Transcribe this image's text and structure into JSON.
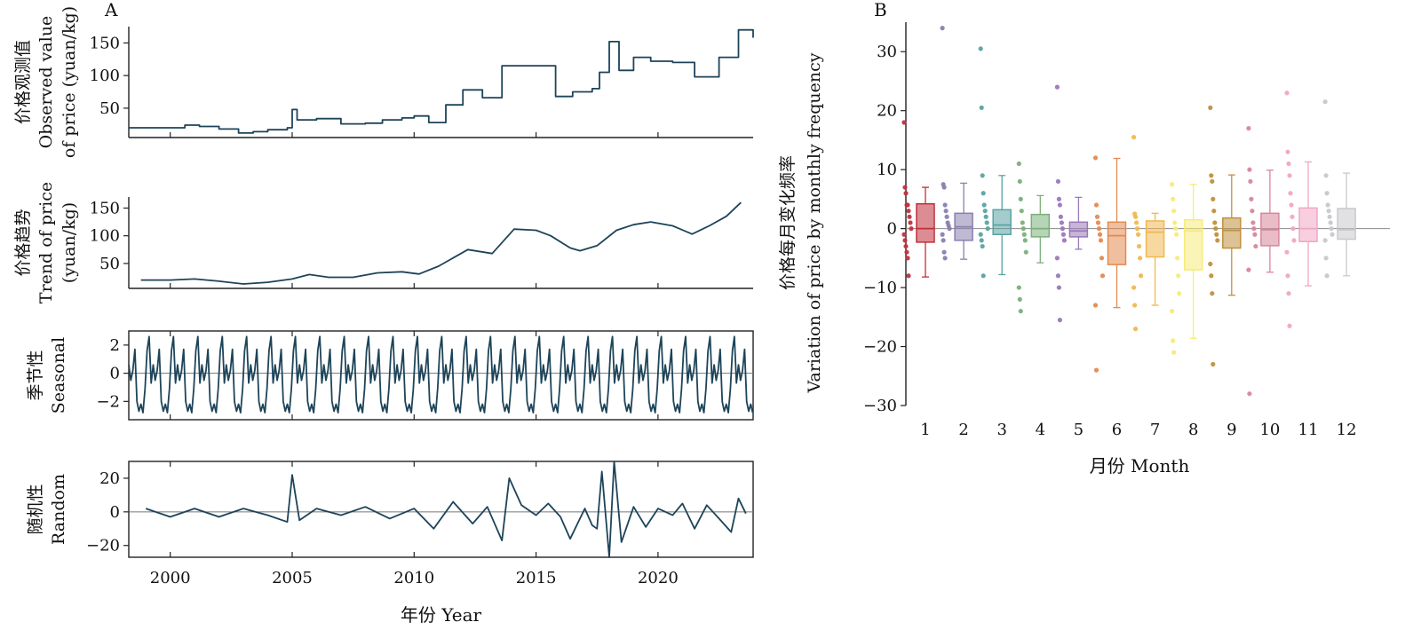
{
  "panel_a_label": "A",
  "panel_b_label": "B",
  "chart_data": [
    {
      "type": "line",
      "id": "observed",
      "ylabel": [
        "价格观测值",
        "Observed value",
        "of price (yuan/kg)"
      ],
      "yticks": [
        50,
        100,
        150
      ],
      "ylim": [
        5,
        175
      ],
      "x": [
        1998.3,
        1999,
        2000,
        2000.6,
        2001.2,
        2002,
        2002.8,
        2003.4,
        2004,
        2004.8,
        2005,
        2005.2,
        2006,
        2007,
        2008,
        2008.7,
        2009.5,
        2010,
        2010.6,
        2011.3,
        2012,
        2012.8,
        2013.6,
        2014.5,
        2015,
        2015.8,
        2016.5,
        2017.3,
        2017.6,
        2018,
        2018.4,
        2019,
        2019.7,
        2020.6,
        2021.5,
        2022.5,
        2023.3,
        2023.9
      ],
      "y": [
        20,
        20,
        20,
        24,
        22,
        18,
        12,
        14,
        17,
        20,
        48,
        32,
        34,
        26,
        27,
        32,
        35,
        38,
        28,
        55,
        78,
        66,
        115,
        115,
        115,
        68,
        75,
        80,
        105,
        152,
        108,
        128,
        122,
        120,
        98,
        128,
        170,
        158
      ],
      "xlim": [
        1998.3,
        2023.9
      ]
    },
    {
      "type": "line",
      "id": "trend",
      "ylabel": [
        "价格趋势",
        "Trend of price",
        "(yuan/kg)"
      ],
      "yticks": [
        50,
        100,
        150
      ],
      "ylim": [
        5,
        170
      ],
      "x": [
        1998.8,
        2000,
        2001,
        2002,
        2003,
        2004,
        2005,
        2005.7,
        2006.5,
        2007.5,
        2008.5,
        2009.5,
        2010.2,
        2011,
        2012.2,
        2013.2,
        2014.1,
        2015,
        2015.6,
        2016.4,
        2016.8,
        2017.5,
        2018.3,
        2019,
        2019.7,
        2020.6,
        2021.4,
        2022.1,
        2022.8,
        2023.4
      ],
      "y": [
        20,
        20,
        22,
        18,
        13,
        16,
        22,
        30,
        25,
        25,
        33,
        35,
        31,
        45,
        75,
        68,
        112,
        110,
        100,
        78,
        73,
        82,
        110,
        120,
        125,
        118,
        103,
        118,
        135,
        160
      ],
      "xlim": [
        1998.3,
        2023.9
      ]
    },
    {
      "type": "line",
      "id": "seasonal",
      "ylabel": [
        "季节性",
        "Seasonal"
      ],
      "yticks": [
        -2,
        0,
        2
      ],
      "ylim": [
        -3.3,
        3.0
      ],
      "period": [
        0.6,
        -0.5,
        0.2,
        1.7,
        -2.0,
        -2.7,
        -2.2,
        -2.8,
        -1.1,
        1.6,
        2.6,
        -0.7
      ],
      "xlim": [
        1998.3,
        2023.9
      ]
    },
    {
      "type": "line",
      "id": "random",
      "ylabel": [
        "随机性",
        "Random"
      ],
      "yticks": [
        -20,
        0,
        20
      ],
      "ylim": [
        -27,
        30
      ],
      "x": [
        1999,
        2000,
        2001,
        2002,
        2003,
        2004,
        2004.8,
        2005,
        2005.3,
        2006,
        2007,
        2008,
        2009,
        2010,
        2010.8,
        2011.6,
        2012.4,
        2013,
        2013.6,
        2013.9,
        2014.4,
        2015,
        2015.5,
        2016,
        2016.4,
        2017,
        2017.3,
        2017.5,
        2017.7,
        2018,
        2018.2,
        2018.5,
        2019,
        2019.5,
        2020,
        2020.6,
        2021,
        2021.5,
        2022,
        2022.5,
        2023,
        2023.3,
        2023.6
      ],
      "y": [
        2,
        -3,
        2,
        -3,
        2,
        -2,
        -6,
        22,
        -5,
        2,
        -2,
        3,
        -4,
        2,
        -10,
        6,
        -7,
        3,
        -17,
        20,
        4,
        -2,
        5,
        -3,
        -16,
        2,
        -8,
        -10,
        24,
        -27,
        30,
        -18,
        3,
        -9,
        2,
        -2,
        5,
        -10,
        4,
        -4,
        -12,
        8,
        -1
      ],
      "xlim": [
        1998.3,
        2023.9
      ]
    }
  ],
  "panel_a_xaxis": {
    "xticks": [
      2000,
      2005,
      2010,
      2015,
      2020
    ],
    "xlabel": "年份 Year"
  },
  "panel_b": {
    "type": "box",
    "ylabel": [
      "价格每月变化频率",
      "Variation of price by monthly frequency"
    ],
    "xlabel": "月份 Month",
    "ylim": [
      -30,
      35
    ],
    "yticks": [
      -30,
      -20,
      -10,
      0,
      10,
      20,
      30
    ],
    "categories": [
      "1",
      "2",
      "3",
      "4",
      "5",
      "6",
      "7",
      "8",
      "9",
      "10",
      "11",
      "12"
    ],
    "colors": [
      "#c0303c",
      "#8a7fb0",
      "#5aa3a3",
      "#7ab07a",
      "#9a78b8",
      "#e48a50",
      "#f0b850",
      "#f5eb7a",
      "#c0903e",
      "#d7879a",
      "#f0a7c4",
      "#c8c8cc"
    ],
    "boxes": [
      {
        "min": -8.2,
        "q1": -2.3,
        "median": 0,
        "q3": 4.2,
        "max": 7
      },
      {
        "min": -5.2,
        "q1": -2.0,
        "median": 0.3,
        "q3": 2.6,
        "max": 7.7
      },
      {
        "min": -7.8,
        "q1": -1.0,
        "median": 0.6,
        "q3": 3.2,
        "max": 9
      },
      {
        "min": -5.8,
        "q1": -1.4,
        "median": 0,
        "q3": 2.4,
        "max": 5.6
      },
      {
        "min": -3.5,
        "q1": -1.4,
        "median": -0.4,
        "q3": 1.1,
        "max": 5.3
      },
      {
        "min": -13.4,
        "q1": -6.1,
        "median": -1.2,
        "q3": 1.1,
        "max": 11.9
      },
      {
        "min": -13.0,
        "q1": -4.8,
        "median": -0.6,
        "q3": 1.3,
        "max": 2.6
      },
      {
        "min": -18.6,
        "q1": -7.0,
        "median": -0.4,
        "q3": 1.5,
        "max": 7.5
      },
      {
        "min": -11.3,
        "q1": -3.3,
        "median": -0.3,
        "q3": 1.8,
        "max": 9.1
      },
      {
        "min": -7.4,
        "q1": -2.9,
        "median": -0.2,
        "q3": 2.6,
        "max": 9.9
      },
      {
        "min": -9.7,
        "q1": -2.2,
        "median": 0,
        "q3": 3.5,
        "max": 11.3
      },
      {
        "min": -8.0,
        "q1": -1.8,
        "median": -0.2,
        "q3": 3.4,
        "max": 9.4
      }
    ],
    "points": [
      [
        18,
        7,
        6,
        4,
        4,
        3,
        2,
        1,
        0,
        -1,
        -2,
        -3,
        -4,
        -5,
        -8
      ],
      [
        34,
        7.5,
        7,
        4,
        3,
        2,
        1,
        0.5,
        0,
        -1,
        -2,
        -4,
        -5
      ],
      [
        30.5,
        20.5,
        9,
        6,
        4,
        3,
        2,
        1,
        0,
        -1,
        -2,
        -3,
        -8
      ],
      [
        11,
        8,
        5,
        3,
        1,
        0,
        -1,
        -2,
        -4,
        -10,
        -12,
        -14
      ],
      [
        24,
        8,
        5,
        4,
        2,
        1,
        0,
        -1,
        -2,
        -5,
        -8,
        -10,
        -15.5
      ],
      [
        12,
        4,
        2,
        1,
        0,
        -1,
        -2,
        -5,
        -8,
        -13,
        -24
      ],
      [
        15.5,
        2.5,
        2,
        1,
        0,
        -1,
        -3,
        -5,
        -8,
        -10,
        -13,
        -17
      ],
      [
        7.5,
        5,
        3,
        1,
        0,
        -1,
        -5,
        -8,
        -11,
        -14,
        -19,
        -21
      ],
      [
        20.5,
        9,
        8,
        5,
        3,
        1,
        0,
        -1,
        -2,
        -6,
        -8,
        -11,
        -23
      ],
      [
        17,
        10,
        8,
        5,
        3,
        1,
        0,
        -1,
        -3,
        -7,
        -28
      ],
      [
        23,
        13,
        11,
        9,
        6,
        4,
        2,
        0,
        -2,
        -4,
        -8,
        -11,
        -16.5
      ],
      [
        21.5,
        9,
        6,
        4,
        3,
        2,
        1,
        0,
        -1,
        -2,
        -5,
        -8
      ]
    ]
  }
}
